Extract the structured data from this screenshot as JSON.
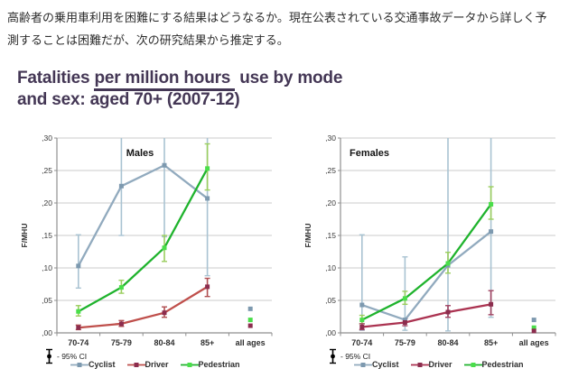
{
  "intro": {
    "lines": [
      "高齢者の乗用車利用を困難にする結果はどうなるか。現在公表されている交通事故データから詳しく予",
      "測することは困難だが、次の研究結果から推定する。"
    ]
  },
  "figure": {
    "title": {
      "part1": "Fatalities ",
      "underlined": "per million hours",
      "part2": " use by mode",
      "line2": "and sex: aged 70+ (2007-12)",
      "color": "#443755"
    }
  },
  "chart_data": [
    {
      "type": "line",
      "title": "Males",
      "ylabel": "F/MHU",
      "xlabel": "",
      "ylim": [
        0,
        0.3
      ],
      "grid": true,
      "legend_position": "bottom",
      "ci_note": "- 95% CI",
      "yticks": [
        0,
        0.05,
        0.1,
        0.15,
        0.2,
        0.25,
        0.3
      ],
      "ytick_labels": [
        ",00",
        ",05",
        ",10",
        ",15",
        ",20",
        ",25",
        ",30"
      ],
      "categories": [
        "70-74",
        "75-79",
        "80-84",
        "85+",
        "all ages"
      ],
      "series": [
        {
          "name": "Cyclist",
          "line_color": "#91aabe",
          "marker_color": "#7d99af",
          "ci_color": "#a9c3d2",
          "values": [
            0.103,
            0.226,
            0.258,
            0.207,
            0.037
          ],
          "ci_low": [
            0.069,
            0.15,
            0.148,
            0.088,
            null
          ],
          "ci_high": [
            0.151,
            0.33,
            0.33,
            0.33,
            null
          ]
        },
        {
          "name": "Driver",
          "line_color": "#bf4f4b",
          "marker_color": "#8c2d4e",
          "ci_color": "#b04f52",
          "values": [
            0.008,
            0.014,
            0.031,
            0.071,
            0.011
          ],
          "ci_low": [
            0.005,
            0.01,
            0.024,
            0.056,
            null
          ],
          "ci_high": [
            0.012,
            0.019,
            0.04,
            0.084,
            null
          ]
        },
        {
          "name": "Pedestrian",
          "line_color": "#1fb32d",
          "marker_color": "#4ade4a",
          "ci_color": "#9bce5f",
          "values": [
            0.033,
            0.07,
            0.131,
            0.253,
            0.02
          ],
          "ci_low": [
            0.026,
            0.061,
            0.11,
            0.22,
            null
          ],
          "ci_high": [
            0.042,
            0.081,
            0.15,
            0.291,
            null
          ]
        }
      ]
    },
    {
      "type": "line",
      "title": "Females",
      "ylabel": "F/MHU",
      "xlabel": "",
      "ylim": [
        0,
        0.3
      ],
      "grid": true,
      "legend_position": "bottom",
      "ci_note": "- 95% CI",
      "yticks": [
        0,
        0.05,
        0.1,
        0.15,
        0.2,
        0.25,
        0.3
      ],
      "ytick_labels": [
        ",00",
        ",05",
        ",10",
        ",15",
        ",20",
        ",25",
        ",30"
      ],
      "categories": [
        "70-74",
        "75-79",
        "80-84",
        "85+",
        "all ages"
      ],
      "series": [
        {
          "name": "Cyclist",
          "line_color": "#91aabe",
          "marker_color": "#7d99af",
          "ci_color": "#a9c3d2",
          "values": [
            0.043,
            0.02,
            0.104,
            0.156,
            0.02
          ],
          "ci_low": [
            0.004,
            0.004,
            0.003,
            0.024,
            null
          ],
          "ci_high": [
            0.151,
            0.117,
            0.33,
            0.33,
            null
          ]
        },
        {
          "name": "Driver",
          "line_color": "#ab3351",
          "marker_color": "#8c2d4e",
          "ci_color": "#a04462",
          "values": [
            0.009,
            0.016,
            0.032,
            0.044,
            0.003
          ],
          "ci_low": [
            0.005,
            0.011,
            0.024,
            0.028,
            null
          ],
          "ci_high": [
            0.014,
            0.022,
            0.042,
            0.065,
            null
          ]
        },
        {
          "name": "Pedestrian",
          "line_color": "#1fb32d",
          "marker_color": "#4ade4a",
          "ci_color": "#9bce5f",
          "values": [
            0.02,
            0.053,
            0.107,
            0.198,
            0.008
          ],
          "ci_low": [
            0.014,
            0.044,
            0.092,
            0.175,
            null
          ],
          "ci_high": [
            0.027,
            0.064,
            0.124,
            0.225,
            null
          ]
        }
      ]
    }
  ]
}
